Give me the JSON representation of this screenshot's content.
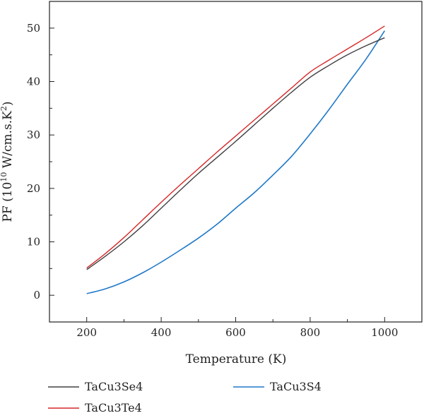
{
  "chart_data": {
    "type": "line",
    "title": "",
    "xlabel": "Temperature (K)",
    "ylabel_parts": {
      "prefix": "PF (10",
      "exp1": "10",
      "mid": " W/cm.s.K",
      "exp2": "2",
      "suffix": ")"
    },
    "xlim": [
      100,
      1100
    ],
    "ylim": [
      -5,
      55
    ],
    "xticks": [
      200,
      400,
      600,
      800,
      1000
    ],
    "yticks": [
      0,
      10,
      20,
      30,
      40,
      50
    ],
    "grid": false,
    "legend_position": "bottom",
    "series": [
      {
        "name": "TaCu3Se4",
        "color": "#404040",
        "x": [
          200,
          250,
          300,
          350,
          400,
          450,
          500,
          550,
          600,
          650,
          700,
          750,
          800,
          850,
          900,
          950,
          1000
        ],
        "y": [
          4.8,
          7.3,
          10.0,
          13.0,
          16.3,
          19.6,
          22.8,
          25.8,
          28.8,
          31.9,
          35.0,
          38.0,
          40.8,
          43.0,
          45.0,
          46.7,
          48.2
        ]
      },
      {
        "name": "TaCu3Te4",
        "color": "#d62728",
        "x": [
          200,
          250,
          300,
          350,
          400,
          450,
          500,
          550,
          600,
          650,
          700,
          750,
          800,
          850,
          900,
          950,
          1000
        ],
        "y": [
          5.1,
          7.8,
          10.8,
          14.1,
          17.4,
          20.6,
          23.7,
          26.8,
          29.8,
          32.8,
          35.8,
          38.8,
          41.8,
          44.0,
          46.1,
          48.2,
          50.4
        ]
      },
      {
        "name": "TaCu3S4",
        "color": "#1f78c8",
        "x": [
          200,
          250,
          300,
          350,
          400,
          450,
          500,
          550,
          600,
          650,
          700,
          750,
          800,
          850,
          900,
          950,
          1000
        ],
        "y": [
          0.3,
          1.2,
          2.5,
          4.2,
          6.2,
          8.4,
          10.7,
          13.3,
          16.3,
          19.2,
          22.5,
          26.0,
          30.2,
          34.7,
          39.5,
          44.2,
          49.5
        ]
      }
    ]
  }
}
